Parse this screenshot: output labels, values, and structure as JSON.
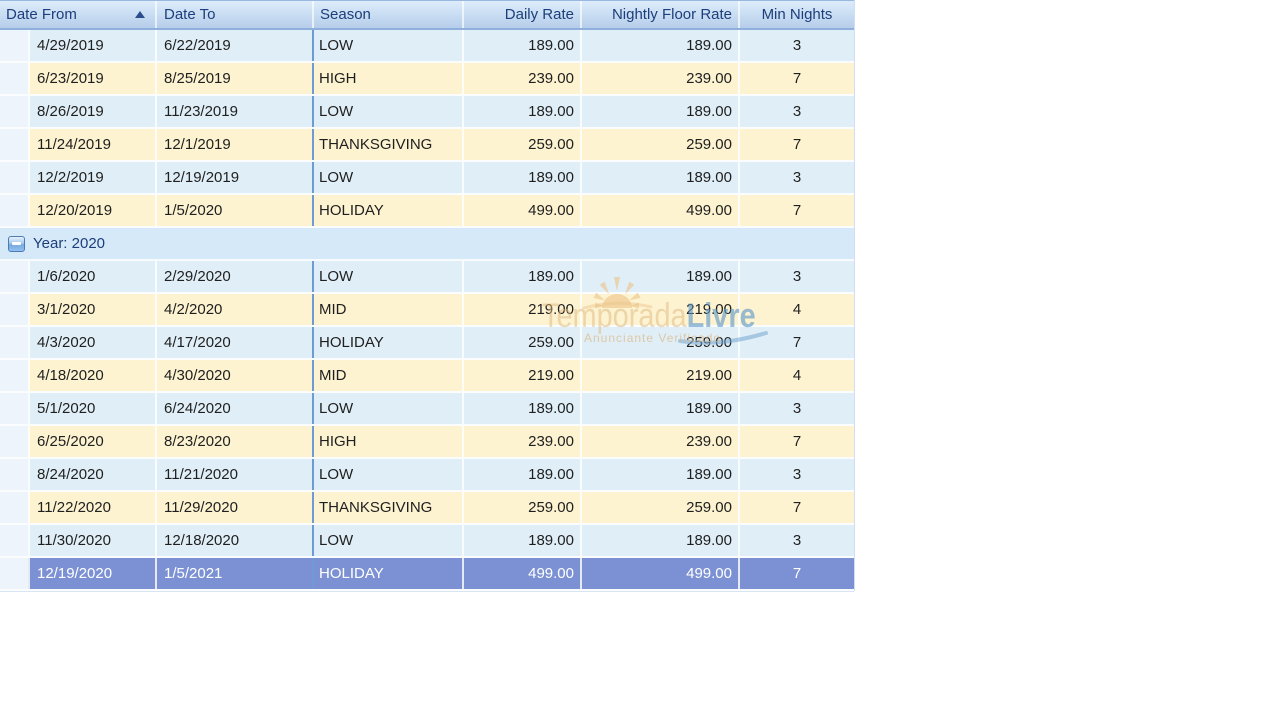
{
  "header": {
    "columns": [
      {
        "label": "Date From",
        "sort": "asc",
        "sort_icon": "triangle-up"
      },
      {
        "label": "Date To"
      },
      {
        "label": "Season"
      },
      {
        "label": "Daily Rate"
      },
      {
        "label": "Nightly Floor Rate"
      },
      {
        "label": "Min Nights"
      }
    ]
  },
  "body": {
    "groups": [
      {
        "label": "",
        "rows": [
          {
            "date_from": "4/29/2019",
            "date_to": "6/22/2019",
            "season": "LOW",
            "daily_rate": "189.00",
            "nightly_floor_rate": "189.00",
            "min_nights": "3",
            "selected": false
          },
          {
            "date_from": "6/23/2019",
            "date_to": "8/25/2019",
            "season": "HIGH",
            "daily_rate": "239.00",
            "nightly_floor_rate": "239.00",
            "min_nights": "7",
            "selected": false
          },
          {
            "date_from": "8/26/2019",
            "date_to": "11/23/2019",
            "season": "LOW",
            "daily_rate": "189.00",
            "nightly_floor_rate": "189.00",
            "min_nights": "3",
            "selected": false
          },
          {
            "date_from": "11/24/2019",
            "date_to": "12/1/2019",
            "season": "THANKSGIVING",
            "daily_rate": "259.00",
            "nightly_floor_rate": "259.00",
            "min_nights": "7",
            "selected": false
          },
          {
            "date_from": "12/2/2019",
            "date_to": "12/19/2019",
            "season": "LOW",
            "daily_rate": "189.00",
            "nightly_floor_rate": "189.00",
            "min_nights": "3",
            "selected": false
          },
          {
            "date_from": "12/20/2019",
            "date_to": "1/5/2020",
            "season": "HOLIDAY",
            "daily_rate": "499.00",
            "nightly_floor_rate": "499.00",
            "min_nights": "7",
            "selected": false
          }
        ]
      },
      {
        "label": "Year: 2020",
        "collapse_icon": "minus",
        "expanded": true,
        "rows": [
          {
            "date_from": "1/6/2020",
            "date_to": "2/29/2020",
            "season": "LOW",
            "daily_rate": "189.00",
            "nightly_floor_rate": "189.00",
            "min_nights": "3",
            "selected": false
          },
          {
            "date_from": "3/1/2020",
            "date_to": "4/2/2020",
            "season": "MID",
            "daily_rate": "219.00",
            "nightly_floor_rate": "219.00",
            "min_nights": "4",
            "selected": false
          },
          {
            "date_from": "4/3/2020",
            "date_to": "4/17/2020",
            "season": "HOLIDAY",
            "daily_rate": "259.00",
            "nightly_floor_rate": "259.00",
            "min_nights": "7",
            "selected": false
          },
          {
            "date_from": "4/18/2020",
            "date_to": "4/30/2020",
            "season": "MID",
            "daily_rate": "219.00",
            "nightly_floor_rate": "219.00",
            "min_nights": "4",
            "selected": false
          },
          {
            "date_from": "5/1/2020",
            "date_to": "6/24/2020",
            "season": "LOW",
            "daily_rate": "189.00",
            "nightly_floor_rate": "189.00",
            "min_nights": "3",
            "selected": false
          },
          {
            "date_from": "6/25/2020",
            "date_to": "8/23/2020",
            "season": "HIGH",
            "daily_rate": "239.00",
            "nightly_floor_rate": "239.00",
            "min_nights": "7",
            "selected": false
          },
          {
            "date_from": "8/24/2020",
            "date_to": "11/21/2020",
            "season": "LOW",
            "daily_rate": "189.00",
            "nightly_floor_rate": "189.00",
            "min_nights": "3",
            "selected": false
          },
          {
            "date_from": "11/22/2020",
            "date_to": "11/29/2020",
            "season": "THANKSGIVING",
            "daily_rate": "259.00",
            "nightly_floor_rate": "259.00",
            "min_nights": "7",
            "selected": false
          },
          {
            "date_from": "11/30/2020",
            "date_to": "12/18/2020",
            "season": "LOW",
            "daily_rate": "189.00",
            "nightly_floor_rate": "189.00",
            "min_nights": "3",
            "selected": false
          },
          {
            "date_from": "12/19/2020",
            "date_to": "1/5/2021",
            "season": "HOLIDAY",
            "daily_rate": "499.00",
            "nightly_floor_rate": "499.00",
            "min_nights": "7",
            "selected": true
          }
        ]
      }
    ]
  },
  "watermark": {
    "brand_light": "Temporada",
    "brand_bold": "Livre",
    "subtitle": "Anunciante Verificado",
    "sun_icon": "sun-icon"
  },
  "colors": {
    "header_text": "#1c3e7a",
    "header_gradient_top": "#ddecfa",
    "header_gradient_bottom": "#b6cdea",
    "row_blue": "#e0eff7",
    "row_cream": "#fdf3d1",
    "row_selected": "#7c91d3",
    "selected_text": "#ffffff",
    "group_row": "#d6e9f8",
    "dark_column_separator": "#6e9bd3",
    "cell_text": "#1f1f1f",
    "watermark_tan": "#deb880",
    "watermark_blue": "#5c96c8"
  }
}
